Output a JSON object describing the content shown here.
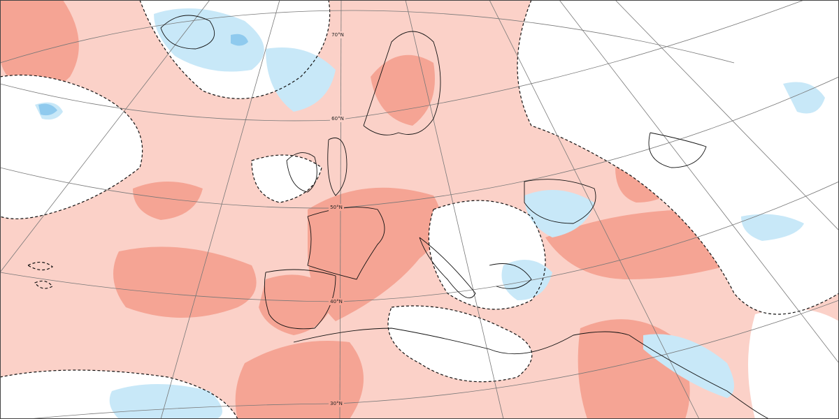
{
  "latitude_labels": [
    "70°N",
    "60°N",
    "50°N",
    "40°N",
    "30°N"
  ]
}
